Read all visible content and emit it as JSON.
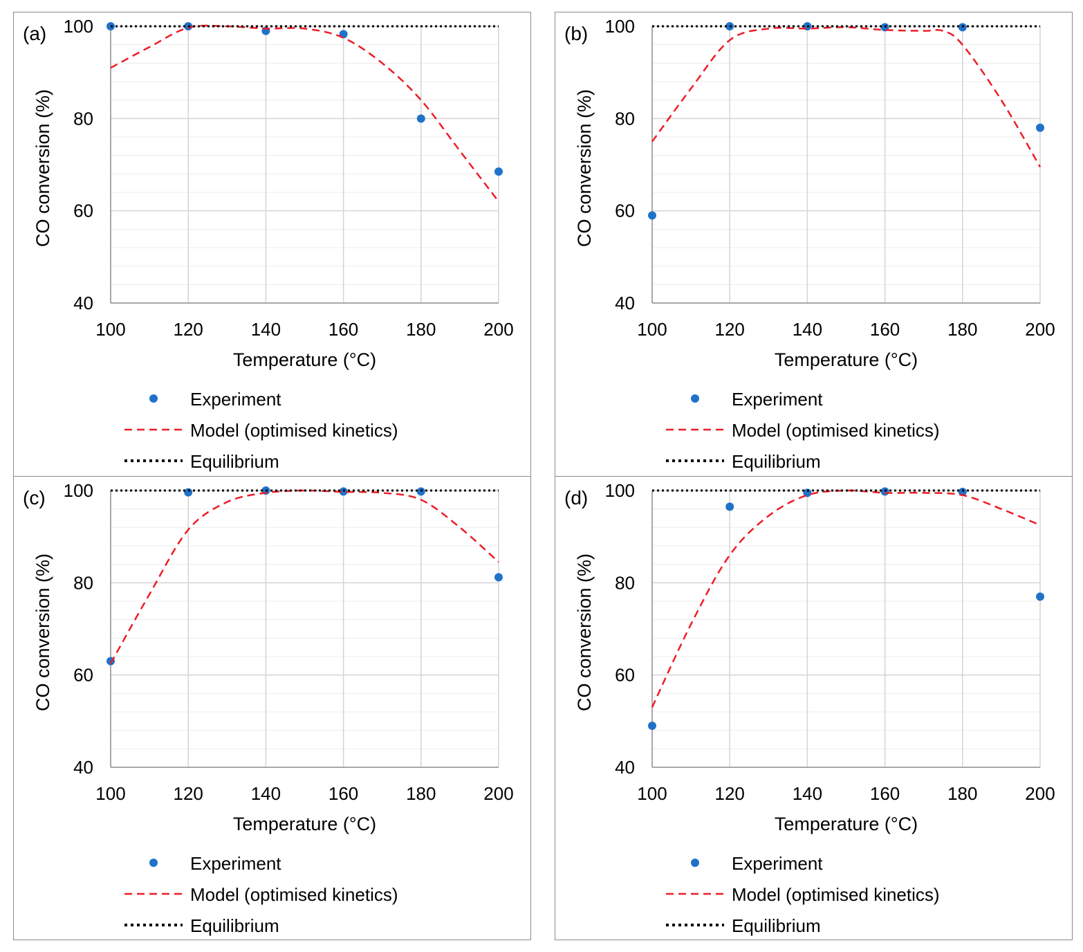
{
  "chart_data": [
    {
      "type": "scatter+line",
      "panel_label": "(a)",
      "xlabel": "Temperature (°C)",
      "ylabel": "CO conversion (%)",
      "xlim": [
        100,
        200
      ],
      "ylim": [
        40,
        100
      ],
      "x_ticks": [
        100,
        120,
        140,
        160,
        180,
        200
      ],
      "y_ticks": [
        40,
        60,
        80,
        100
      ],
      "legend": [
        "Experiment",
        "Model (optimised kinetics)",
        "Equilibrium"
      ],
      "series": [
        {
          "name": "Experiment",
          "style": "points",
          "color": "#1f72c8",
          "x": [
            100,
            120,
            140,
            160,
            180,
            200
          ],
          "y": [
            100,
            100,
            99,
            98.3,
            80,
            68.5
          ]
        },
        {
          "name": "Model (optimised kinetics)",
          "style": "dashed",
          "color": "#ee1c25",
          "x": [
            100,
            110,
            120,
            130,
            140,
            150,
            160,
            170,
            180,
            190,
            200
          ],
          "y": [
            91,
            95.5,
            99.7,
            100,
            99.5,
            99.5,
            97.5,
            92,
            84,
            73,
            62
          ]
        },
        {
          "name": "Equilibrium",
          "style": "dotted",
          "color": "#000000",
          "x": [
            100,
            200
          ],
          "y": [
            100,
            100
          ]
        }
      ]
    },
    {
      "type": "scatter+line",
      "panel_label": "(b)",
      "xlabel": "Temperature (°C)",
      "ylabel": "CO conversion (%)",
      "xlim": [
        100,
        200
      ],
      "ylim": [
        40,
        100
      ],
      "x_ticks": [
        100,
        120,
        140,
        160,
        180,
        200
      ],
      "y_ticks": [
        40,
        60,
        80,
        100
      ],
      "legend": [
        "Experiment",
        "Model (optimised kinetics)",
        "Equilibrium"
      ],
      "series": [
        {
          "name": "Experiment",
          "style": "points",
          "color": "#1f72c8",
          "x": [
            100,
            120,
            140,
            160,
            180,
            200
          ],
          "y": [
            59,
            100,
            100,
            99.8,
            99.8,
            78
          ]
        },
        {
          "name": "Model (optimised kinetics)",
          "style": "dashed",
          "color": "#ee1c25",
          "x": [
            100,
            110,
            120,
            130,
            140,
            150,
            160,
            170,
            175,
            180,
            190,
            200
          ],
          "y": [
            75,
            86.5,
            97,
            99.5,
            99.5,
            99.8,
            99.2,
            99,
            99,
            96,
            84,
            69.5
          ]
        },
        {
          "name": "Equilibrium",
          "style": "dotted",
          "color": "#000000",
          "x": [
            100,
            200
          ],
          "y": [
            100,
            100
          ]
        }
      ]
    },
    {
      "type": "scatter+line",
      "panel_label": "(c)",
      "xlabel": "Temperature (°C)",
      "ylabel": "CO conversion (%)",
      "xlim": [
        100,
        200
      ],
      "ylim": [
        40,
        100
      ],
      "x_ticks": [
        100,
        120,
        140,
        160,
        180,
        200
      ],
      "y_ticks": [
        40,
        60,
        80,
        100
      ],
      "legend": [
        "Experiment",
        "Model (optimised kinetics)",
        "Equilibrium"
      ],
      "series": [
        {
          "name": "Experiment",
          "style": "points",
          "color": "#1f72c8",
          "x": [
            100,
            120,
            140,
            160,
            180,
            200
          ],
          "y": [
            63,
            99.6,
            100,
            99.8,
            99.8,
            81.2
          ]
        },
        {
          "name": "Model (optimised kinetics)",
          "style": "dashed",
          "color": "#ee1c25",
          "x": [
            100,
            110,
            120,
            130,
            140,
            150,
            160,
            170,
            180,
            190,
            200
          ],
          "y": [
            62.5,
            77.5,
            91.5,
            97.5,
            99.5,
            100,
            99.7,
            99.5,
            98,
            92,
            84.5
          ]
        },
        {
          "name": "Equilibrium",
          "style": "dotted",
          "color": "#000000",
          "x": [
            100,
            200
          ],
          "y": [
            100,
            100
          ]
        }
      ]
    },
    {
      "type": "scatter+line",
      "panel_label": "(d)",
      "xlabel": "Temperature (°C)",
      "ylabel": "CO conversion (%)",
      "xlim": [
        100,
        200
      ],
      "ylim": [
        40,
        100
      ],
      "x_ticks": [
        100,
        120,
        140,
        160,
        180,
        200
      ],
      "y_ticks": [
        40,
        60,
        80,
        100
      ],
      "legend": [
        "Experiment",
        "Model (optimised kinetics)",
        "Equilibrium"
      ],
      "series": [
        {
          "name": "Experiment",
          "style": "points",
          "color": "#1f72c8",
          "x": [
            100,
            120,
            140,
            160,
            180,
            200
          ],
          "y": [
            49,
            96.5,
            99.5,
            99.8,
            99.7,
            77
          ]
        },
        {
          "name": "Model (optimised kinetics)",
          "style": "dashed",
          "color": "#ee1c25",
          "x": [
            100,
            110,
            120,
            130,
            140,
            150,
            160,
            170,
            180,
            190,
            200
          ],
          "y": [
            53,
            71,
            86,
            94.5,
            99,
            100,
            99.5,
            99.5,
            99,
            96,
            92.5
          ]
        },
        {
          "name": "Equilibrium",
          "style": "dotted",
          "color": "#000000",
          "x": [
            100,
            200
          ],
          "y": [
            100,
            100
          ]
        }
      ]
    }
  ]
}
